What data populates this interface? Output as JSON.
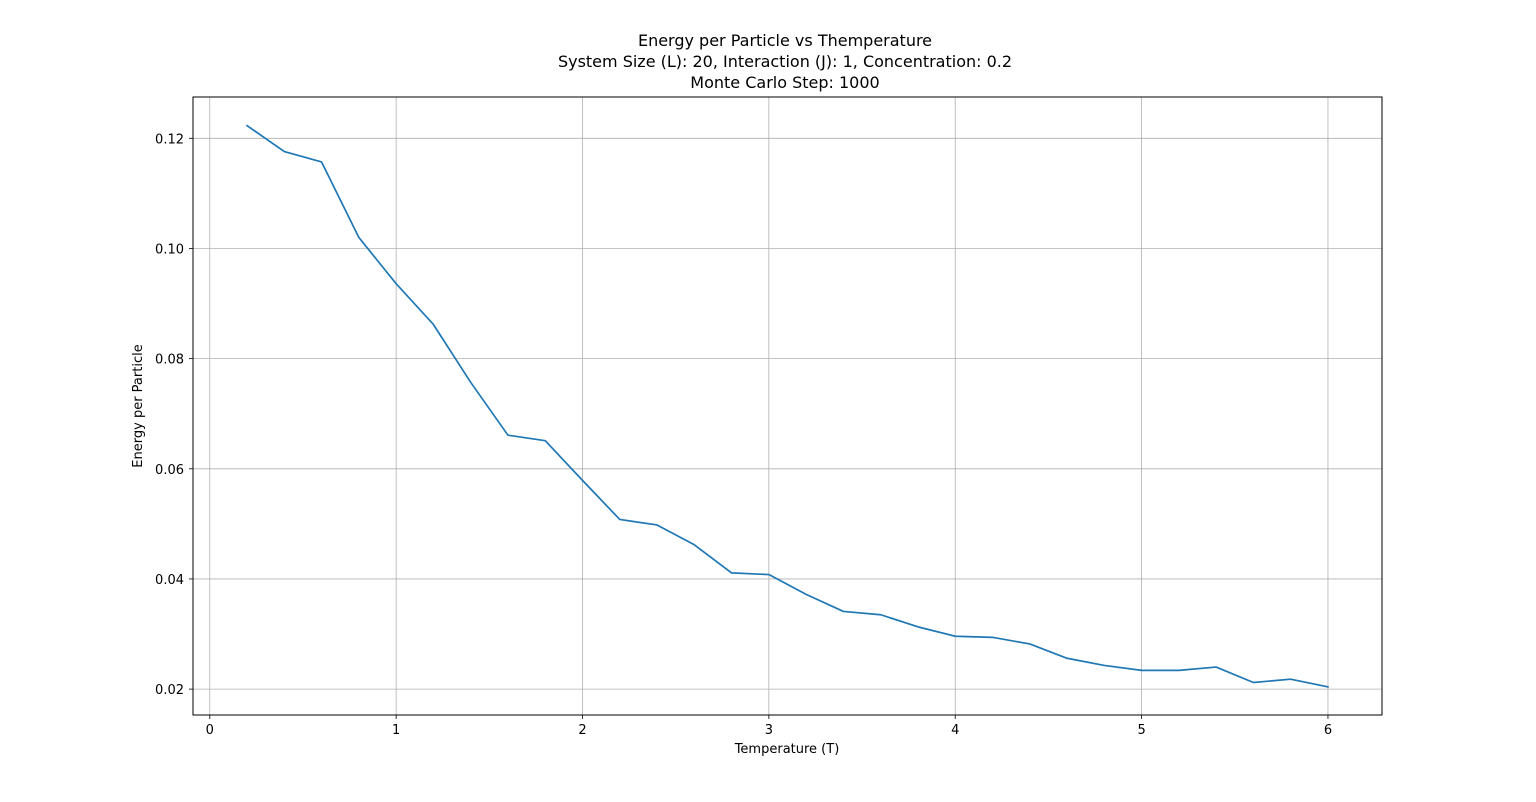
{
  "chart_data": {
    "type": "line",
    "title": "Energy per Particle vs Themperature",
    "subtitle_lines": [
      "System Size (L): 20, Interaction (J): 1, Concentration: 0.2",
      "Monte Carlo Step: 1000"
    ],
    "xlabel": "Temperature (T)",
    "ylabel": "Energy per Particle",
    "xlim": [
      -0.09,
      6.29
    ],
    "ylim": [
      0.0153,
      0.1275
    ],
    "xticks": [
      0,
      1,
      2,
      3,
      4,
      5,
      6
    ],
    "xtick_labels": [
      "0",
      "1",
      "2",
      "3",
      "4",
      "5",
      "6"
    ],
    "yticks": [
      0.02,
      0.04,
      0.06,
      0.08,
      0.1,
      0.12
    ],
    "ytick_labels": [
      "0.02",
      "0.04",
      "0.06",
      "0.08",
      "0.10",
      "0.12"
    ],
    "grid": true,
    "series": [
      {
        "color": "#1f77b4",
        "x": [
          0.2,
          0.4,
          0.6,
          0.8,
          1.0,
          1.2,
          1.4,
          1.6,
          1.8,
          2.0,
          2.2,
          2.4,
          2.6,
          2.8,
          3.0,
          3.2,
          3.4,
          3.6,
          3.8,
          4.0,
          4.2,
          4.4,
          4.6,
          4.8,
          5.0,
          5.2,
          5.4,
          5.6,
          5.8,
          6.0
        ],
        "y": [
          0.1223,
          0.1176,
          0.1157,
          0.102,
          0.0936,
          0.0862,
          0.0757,
          0.0661,
          0.0651,
          0.0579,
          0.0508,
          0.0498,
          0.0462,
          0.0411,
          0.0408,
          0.0372,
          0.0341,
          0.0335,
          0.0313,
          0.0296,
          0.0294,
          0.0282,
          0.0256,
          0.0243,
          0.0234,
          0.0234,
          0.024,
          0.0212,
          0.0218,
          0.0204
        ]
      }
    ]
  }
}
